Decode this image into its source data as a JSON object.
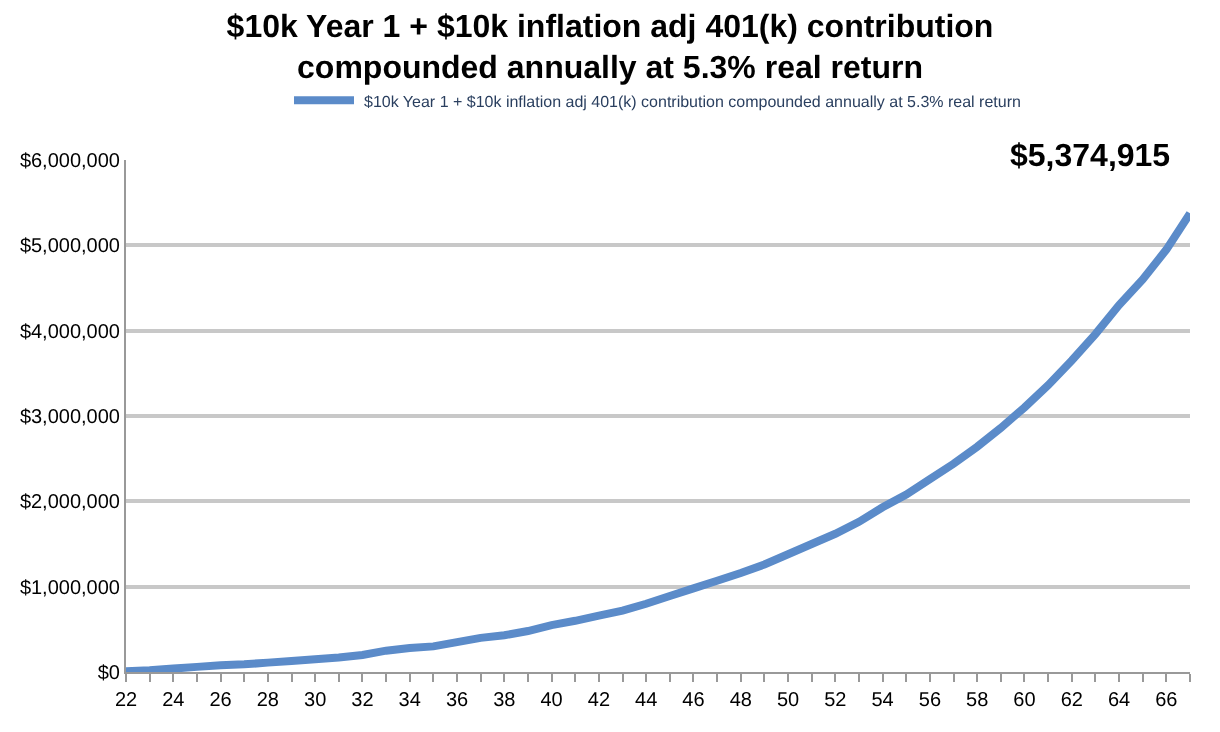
{
  "chart_data": {
    "type": "line",
    "title": "$10k Year 1 + $10k inflation adj 401(k) contribution compounded annually at 5.3% real return",
    "categories": [
      "22",
      null,
      "24",
      null,
      "26",
      null,
      "28",
      null,
      "30",
      null,
      "32",
      null,
      "34",
      null,
      "36",
      null,
      "38",
      null,
      "40",
      null,
      "42",
      null,
      "44",
      null,
      "46",
      null,
      "48",
      null,
      "50",
      null,
      "52",
      null,
      "54",
      null,
      "56",
      null,
      "58",
      null,
      "60",
      null,
      "62",
      null,
      "64",
      null,
      "66",
      null
    ],
    "series": [
      {
        "name": "$10k Year 1 + $10k inflation adj 401(k) contribution compounded annually at 5.3% real return",
        "color": "#5b8bc9",
        "values": [
          10000,
          20000,
          40000,
          60000,
          80000,
          90000,
          110000,
          130000,
          150000,
          170000,
          200000,
          250000,
          280000,
          300000,
          350000,
          400000,
          430000,
          480000,
          550000,
          600000,
          660000,
          720000,
          800000,
          890000,
          980000,
          1070000,
          1160000,
          1260000,
          1380000,
          1500000,
          1620000,
          1760000,
          1930000,
          2080000,
          2260000,
          2440000,
          2640000,
          2860000,
          3100000,
          3360000,
          3650000,
          3960000,
          4300000,
          4600000,
          4950000,
          5374915
        ]
      }
    ],
    "ylim": [
      0,
      6000000
    ],
    "yticks": [
      {
        "value": 0,
        "label": "$0"
      },
      {
        "value": 1000000,
        "label": "$1,000,000"
      },
      {
        "value": 2000000,
        "label": "$2,000,000"
      },
      {
        "value": 3000000,
        "label": "$3,000,000"
      },
      {
        "value": 4000000,
        "label": "$4,000,000"
      },
      {
        "value": 5000000,
        "label": "$5,000,000"
      },
      {
        "value": 6000000,
        "label": "$6,000,000"
      }
    ],
    "grid": "y",
    "legend": "top",
    "marker": "none",
    "line_style": "solid",
    "annotations": [
      "$5,374,915"
    ]
  }
}
